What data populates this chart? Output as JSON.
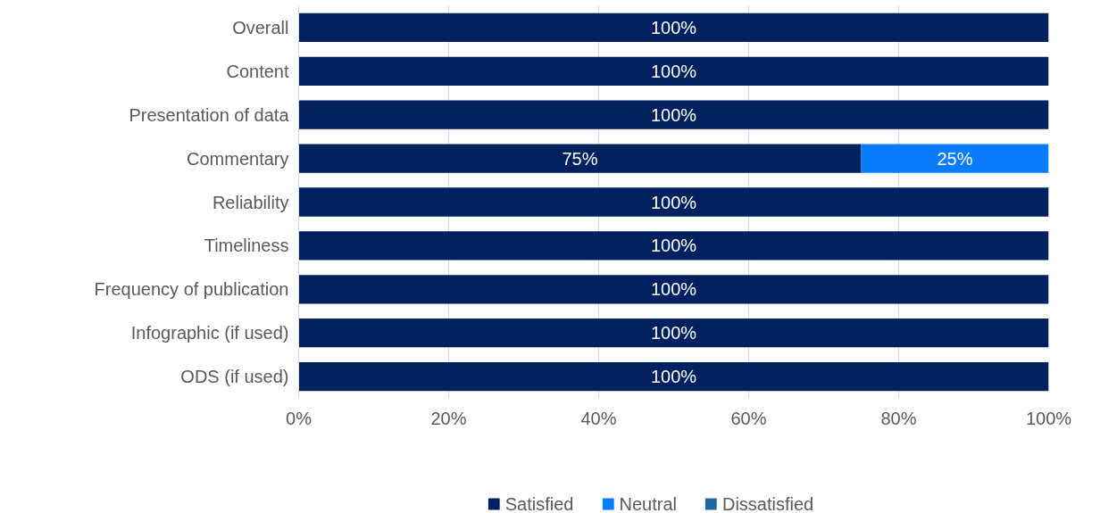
{
  "chart_data": {
    "type": "bar",
    "orientation": "horizontal",
    "stacked": true,
    "categories": [
      "Overall",
      "Content",
      "Presentation of data",
      "Commentary",
      "Reliability",
      "Timeliness",
      "Frequency of publication",
      "Infographic (if used)",
      "ODS (if used)"
    ],
    "series": [
      {
        "name": "Satisfied",
        "color": "#002060",
        "values": [
          100,
          100,
          100,
          75,
          100,
          100,
          100,
          100,
          100
        ],
        "value_labels": [
          "100%",
          "100%",
          "100%",
          "75%",
          "100%",
          "100%",
          "100%",
          "100%",
          "100%"
        ]
      },
      {
        "name": "Neutral",
        "color": "#0a7cff",
        "values": [
          0,
          0,
          0,
          25,
          0,
          0,
          0,
          0,
          0
        ],
        "value_labels": [
          null,
          null,
          null,
          "25%",
          null,
          null,
          null,
          null,
          null
        ]
      },
      {
        "name": "Dissatisfied",
        "color": "#2166a0",
        "values": [
          0,
          0,
          0,
          0,
          0,
          0,
          0,
          0,
          0
        ],
        "value_labels": [
          null,
          null,
          null,
          null,
          null,
          null,
          null,
          null,
          null
        ]
      }
    ],
    "xlim": [
      0,
      100
    ],
    "xticks": [
      {
        "value": 0,
        "label": "0%"
      },
      {
        "value": 20,
        "label": "20%"
      },
      {
        "value": 40,
        "label": "40%"
      },
      {
        "value": 60,
        "label": "60%"
      },
      {
        "value": 80,
        "label": "80%"
      },
      {
        "value": 100,
        "label": "100%"
      }
    ],
    "grid": "x",
    "legend": "bottom"
  }
}
